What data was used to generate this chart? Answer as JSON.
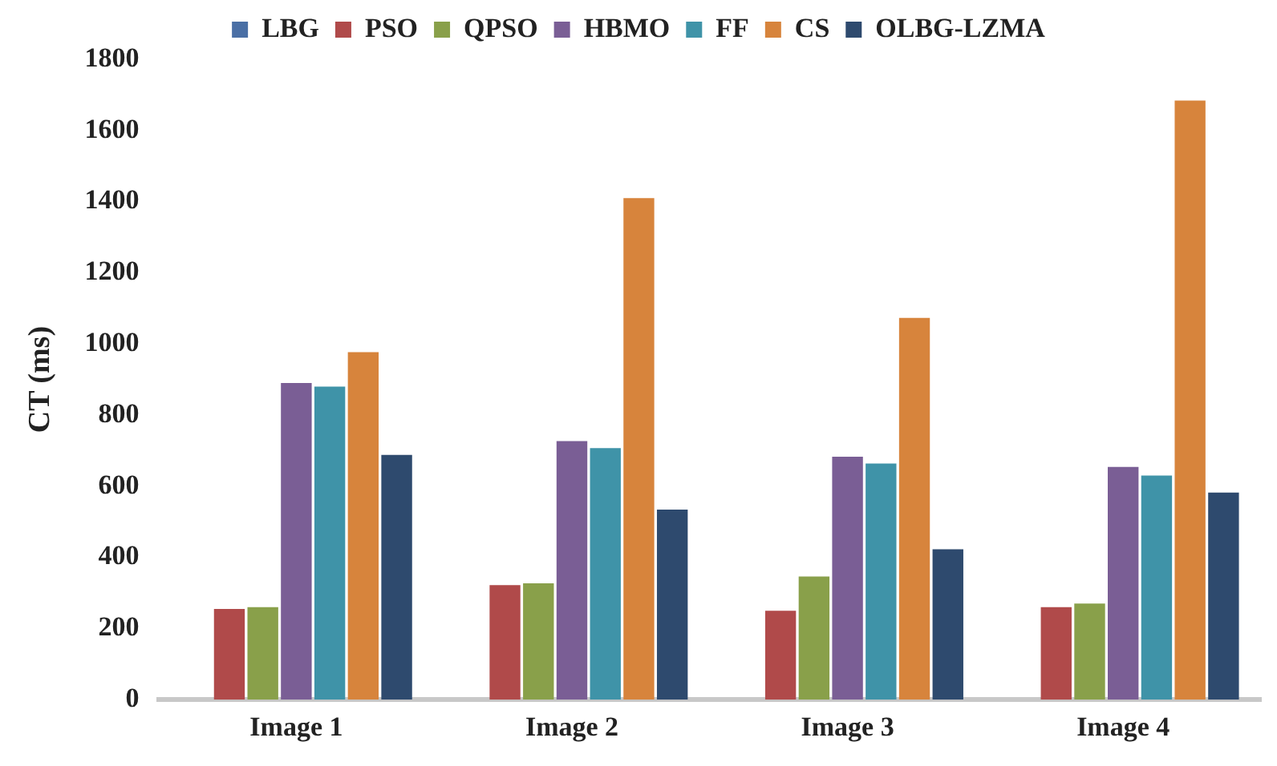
{
  "chart_data": {
    "type": "bar",
    "ylabel": "CT (ms)",
    "categories": [
      "Image 1",
      "Image 2",
      "Image 3",
      "Image 4"
    ],
    "series": [
      {
        "name": "LBG",
        "color": "#4a6fa5",
        "values": [
          0,
          0,
          0,
          0
        ]
      },
      {
        "name": "PSO",
        "color": "#b04a4a",
        "values": [
          255,
          322,
          250,
          260
        ]
      },
      {
        "name": "QPSO",
        "color": "#89a04a",
        "values": [
          260,
          327,
          346,
          270
        ]
      },
      {
        "name": "HBMO",
        "color": "#7a5e95",
        "values": [
          890,
          727,
          683,
          654
        ]
      },
      {
        "name": "FF",
        "color": "#3f93a8",
        "values": [
          880,
          707,
          664,
          630
        ]
      },
      {
        "name": "CS",
        "color": "#d7843c",
        "values": [
          977,
          1410,
          1073,
          1684
        ]
      },
      {
        "name": "OLBG-LZMA",
        "color": "#2e4a6e",
        "values": [
          688,
          534,
          423,
          582
        ]
      }
    ],
    "ylim": [
      0,
      1800
    ],
    "yticks": [
      0,
      200,
      400,
      600,
      800,
      1000,
      1200,
      1400,
      1600,
      1800
    ],
    "grid": false,
    "legend": "top"
  }
}
